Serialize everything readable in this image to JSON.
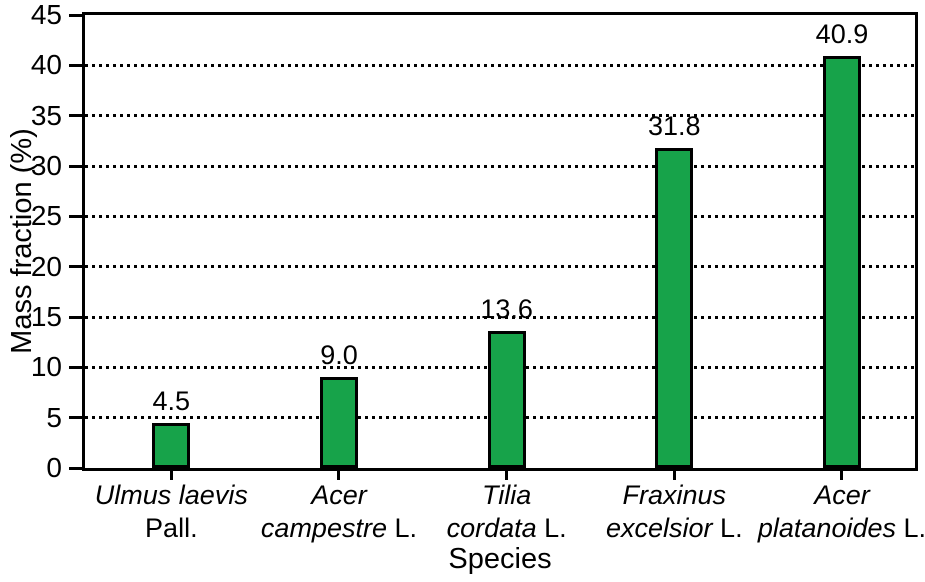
{
  "chart_data": {
    "type": "bar",
    "xlabel": "Species",
    "ylabel": "Mass fraction (%)",
    "ylim": [
      0,
      45
    ],
    "yticks": [
      0,
      5,
      10,
      15,
      20,
      25,
      30,
      35,
      40,
      45
    ],
    "grid": {
      "horizontal": true,
      "style": "dotted",
      "color": "#000000"
    },
    "legend": "none",
    "bar_color": "#17a34a",
    "bar_border_color": "#000000",
    "categories": [
      {
        "name": "Ulmus laevis Pall.",
        "lines": [
          [
            {
              "text": "Ulmus laevis",
              "italic": true
            }
          ],
          [
            {
              "text": "Pall.",
              "italic": false
            }
          ]
        ]
      },
      {
        "name": "Acer campestre L.",
        "lines": [
          [
            {
              "text": "Acer",
              "italic": true
            }
          ],
          [
            {
              "text": "campestre",
              "italic": true
            },
            {
              "text": " L.",
              "italic": false
            }
          ]
        ]
      },
      {
        "name": "Tilia cordata L.",
        "lines": [
          [
            {
              "text": "Tilia",
              "italic": true
            }
          ],
          [
            {
              "text": "cordata",
              "italic": true
            },
            {
              "text": " L.",
              "italic": false
            }
          ]
        ]
      },
      {
        "name": "Fraxinus excelsior L.",
        "lines": [
          [
            {
              "text": "Fraxinus",
              "italic": true
            }
          ],
          [
            {
              "text": "excelsior",
              "italic": true
            },
            {
              "text": " L.",
              "italic": false
            }
          ]
        ]
      },
      {
        "name": "Acer platanoides L.",
        "lines": [
          [
            {
              "text": "Acer",
              "italic": true
            }
          ],
          [
            {
              "text": "platanoides",
              "italic": true
            },
            {
              "text": " L.",
              "italic": false
            }
          ]
        ]
      }
    ],
    "values": [
      4.5,
      9.0,
      13.6,
      31.8,
      40.9
    ],
    "value_labels": [
      "4.5",
      "9.0",
      "13.6",
      "31.8",
      "40.9"
    ]
  }
}
